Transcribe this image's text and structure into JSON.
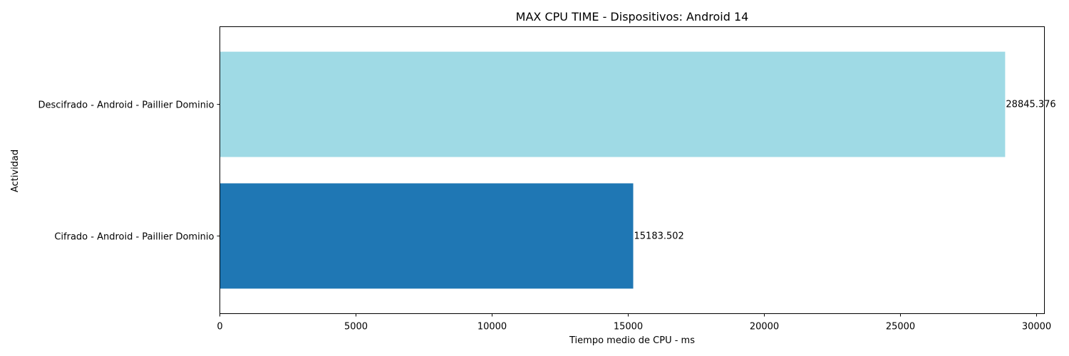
{
  "chart_data": {
    "type": "bar",
    "orientation": "horizontal",
    "title": "MAX CPU TIME - Dispositivos: Android 14",
    "xlabel": "Tiempo medio de CPU - ms",
    "ylabel": "Actividad",
    "categories": [
      "Cifrado - Android - Paillier Dominio",
      "Descifrado - Android - Paillier Dominio"
    ],
    "values": [
      15183.502,
      28845.376
    ],
    "data_labels": [
      "15183.502",
      "28845.376"
    ],
    "colors": [
      "#1f77b4",
      "#9fdae5"
    ],
    "xlim": [
      0,
      30287.6
    ],
    "xticks": [
      0,
      5000,
      10000,
      15000,
      20000,
      25000,
      30000
    ],
    "xtick_labels": [
      "0",
      "5000",
      "10000",
      "15000",
      "20000",
      "25000",
      "30000"
    ],
    "grid": false,
    "legend": "none"
  }
}
